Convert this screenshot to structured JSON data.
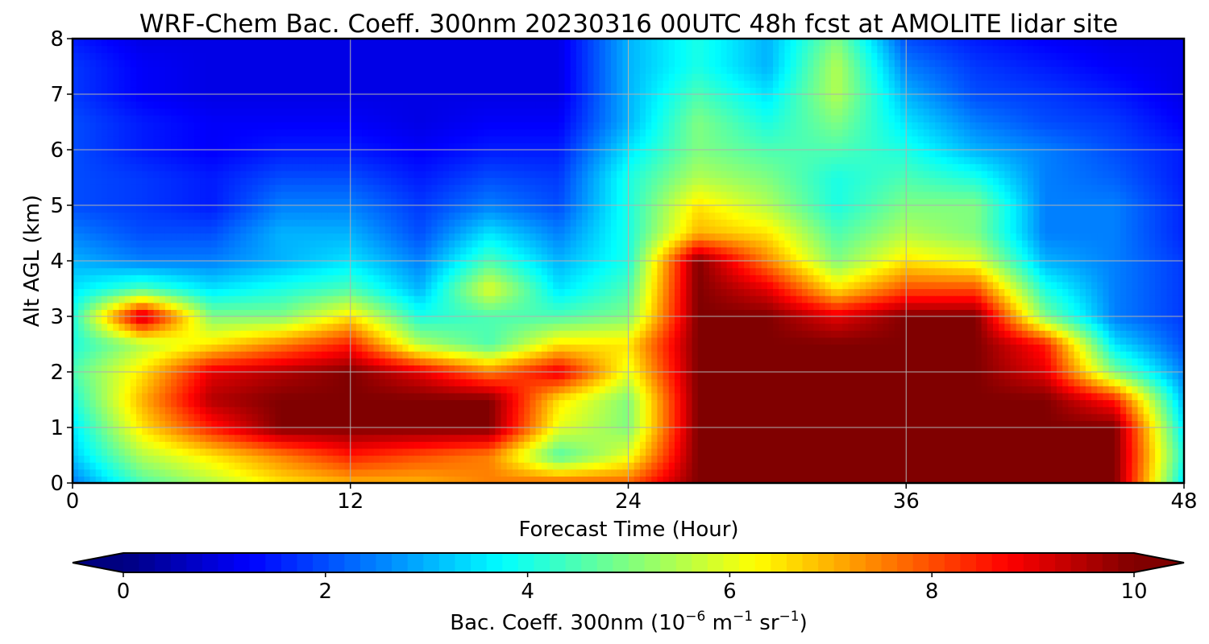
{
  "chart_data": {
    "type": "heatmap",
    "title": "WRF-Chem Bac. Coeff. 300nm  20230316 00UTC 48h fcst at AMOLITE lidar site",
    "xlabel": "Forecast Time (Hour)",
    "ylabel": "Alt AGL (km)",
    "xlim": [
      0,
      48
    ],
    "ylim": [
      0,
      8
    ],
    "xticks": [
      0,
      12,
      24,
      36,
      48
    ],
    "yticks": [
      0,
      1,
      2,
      3,
      4,
      5,
      6,
      7,
      8
    ],
    "grid": true,
    "colorbar": {
      "label_prefix": "Bac. Coeff. 300nm  (10",
      "label_exp1": "−6",
      "label_mid": " m",
      "label_exp2": "−1",
      "label_mid2": " sr",
      "label_exp3": "−1",
      "label_suffix": ")",
      "ticks": [
        0,
        2,
        4,
        6,
        8,
        10
      ],
      "range": [
        0,
        10
      ],
      "extend": "both",
      "colormap": "jet"
    },
    "x_hours": [
      0,
      3,
      6,
      9,
      12,
      15,
      18,
      21,
      24,
      27,
      30,
      33,
      36,
      39,
      42,
      45,
      48
    ],
    "y_km": [
      0,
      0.5,
      1,
      1.5,
      2,
      2.5,
      3,
      3.5,
      4,
      4.5,
      5,
      5.5,
      6,
      6.5,
      7,
      7.5,
      8
    ],
    "values": [
      [
        2.4,
        4.5,
        5.5,
        6.5,
        7.0,
        7.0,
        7.5,
        7.8,
        7.8,
        10,
        10,
        10,
        10,
        10,
        10,
        10,
        3.5
      ],
      [
        3.2,
        5.5,
        6.5,
        7.5,
        8.5,
        8.0,
        7.5,
        4.5,
        6.0,
        10,
        10,
        10,
        10,
        10,
        10,
        10,
        4.0
      ],
      [
        3.5,
        6.5,
        8.5,
        10,
        10,
        10,
        10,
        6.0,
        5.0,
        10,
        10,
        10,
        10,
        10,
        10,
        10,
        3.5
      ],
      [
        4.0,
        7.0,
        9.5,
        10,
        10,
        10,
        10,
        6.5,
        5.0,
        10,
        10,
        10,
        10,
        10,
        10,
        8.5,
        3.0
      ],
      [
        4.5,
        6.5,
        9.0,
        9.5,
        10,
        9.0,
        7.5,
        9.0,
        6.0,
        10,
        10,
        10,
        10,
        10,
        9.0,
        5.0,
        2.5
      ],
      [
        4.0,
        5.5,
        6.5,
        7.5,
        8.5,
        5.5,
        4.5,
        6.5,
        6.5,
        10,
        10,
        10,
        10,
        10,
        8.5,
        3.5,
        2.0
      ],
      [
        4.0,
        9.5,
        5.0,
        5.0,
        6.5,
        4.0,
        4.5,
        4.5,
        5.0,
        10,
        10,
        9.0,
        10,
        10,
        5.0,
        2.5,
        1.8
      ],
      [
        3.5,
        4.5,
        3.5,
        4.0,
        4.5,
        3.0,
        6.0,
        3.5,
        4.5,
        10,
        9.0,
        6.5,
        8.0,
        8.0,
        4.0,
        2.5,
        1.8
      ],
      [
        3.0,
        2.5,
        2.5,
        3.0,
        3.5,
        2.5,
        4.5,
        3.0,
        4.0,
        10,
        7.5,
        5.0,
        6.5,
        6.0,
        3.0,
        2.5,
        1.8
      ],
      [
        2.5,
        2.0,
        2.0,
        3.0,
        3.0,
        2.0,
        3.5,
        2.5,
        4.0,
        7.0,
        6.5,
        4.5,
        5.5,
        5.0,
        2.5,
        2.5,
        1.6
      ],
      [
        2.0,
        1.8,
        1.5,
        2.5,
        2.5,
        1.8,
        2.5,
        2.0,
        4.0,
        6.5,
        5.5,
        4.0,
        5.0,
        5.0,
        2.5,
        2.5,
        1.6
      ],
      [
        2.0,
        1.8,
        1.5,
        2.0,
        2.0,
        1.5,
        2.0,
        1.8,
        4.0,
        5.5,
        5.0,
        4.0,
        4.5,
        4.0,
        2.5,
        2.2,
        1.5
      ],
      [
        2.0,
        1.5,
        1.2,
        1.5,
        1.5,
        1.2,
        1.5,
        1.5,
        3.5,
        5.0,
        4.5,
        4.5,
        4.0,
        3.0,
        2.5,
        2.0,
        1.5
      ],
      [
        2.0,
        1.5,
        1.2,
        1.2,
        1.2,
        1.0,
        1.2,
        1.2,
        3.0,
        5.0,
        4.0,
        5.0,
        3.5,
        2.5,
        2.0,
        1.8,
        1.2
      ],
      [
        1.8,
        1.2,
        1.0,
        1.0,
        1.0,
        1.0,
        1.0,
        1.0,
        3.0,
        4.5,
        3.5,
        5.5,
        3.0,
        2.0,
        1.8,
        1.5,
        1.0
      ],
      [
        1.8,
        1.2,
        1.0,
        1.0,
        1.0,
        1.0,
        1.0,
        1.0,
        3.0,
        4.0,
        3.0,
        5.5,
        2.5,
        1.8,
        1.5,
        1.2,
        1.0
      ],
      [
        1.5,
        1.0,
        1.0,
        1.0,
        1.0,
        1.0,
        1.0,
        1.0,
        3.0,
        4.0,
        3.0,
        5.0,
        2.0,
        1.5,
        1.2,
        1.0,
        1.0
      ]
    ]
  }
}
